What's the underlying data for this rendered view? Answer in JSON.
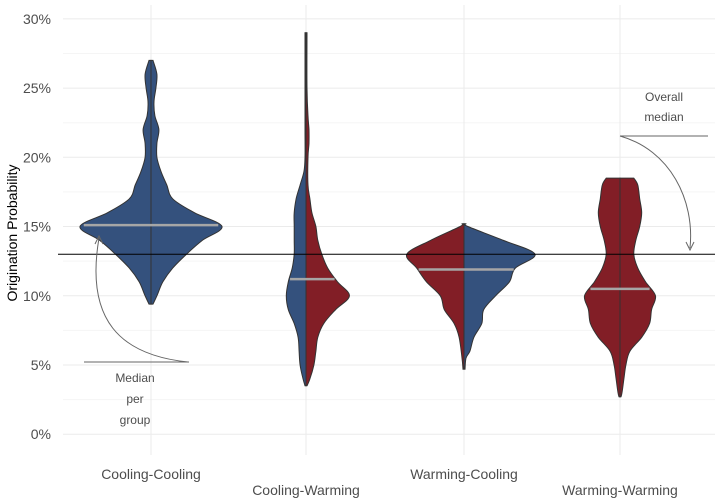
{
  "chart_data": {
    "type": "violin",
    "title": "",
    "xlabel": "",
    "ylabel": "Origination Probability",
    "ylim": [
      -0.015,
      0.31
    ],
    "yticks": [
      0,
      0.05,
      0.1,
      0.15,
      0.2,
      0.25,
      0.3
    ],
    "ytick_labels": [
      "0%",
      "5%",
      "10%",
      "15%",
      "20%",
      "25%",
      "30%"
    ],
    "grid": true,
    "overall_median": 0.13,
    "colors": {
      "cooling": "#34517d",
      "warming": "#821e26",
      "median_line": "#a6a6a6",
      "outline": "#333333"
    },
    "groups": [
      {
        "category": "Cooling-Cooling",
        "label_row": 1,
        "left": "cooling",
        "right": "cooling",
        "median": 0.151,
        "left_profile": [
          [
            0.094,
            2
          ],
          [
            0.1,
            6
          ],
          [
            0.11,
            12
          ],
          [
            0.12,
            22
          ],
          [
            0.13,
            36
          ],
          [
            0.14,
            52
          ],
          [
            0.15,
            72
          ],
          [
            0.16,
            44
          ],
          [
            0.17,
            22
          ],
          [
            0.18,
            16
          ],
          [
            0.19,
            10
          ],
          [
            0.2,
            6
          ],
          [
            0.21,
            6
          ],
          [
            0.22,
            8
          ],
          [
            0.23,
            4
          ],
          [
            0.24,
            3
          ],
          [
            0.25,
            5
          ],
          [
            0.26,
            6
          ],
          [
            0.27,
            2
          ]
        ],
        "right_profile": [
          [
            0.094,
            2
          ],
          [
            0.1,
            6
          ],
          [
            0.11,
            12
          ],
          [
            0.12,
            22
          ],
          [
            0.13,
            36
          ],
          [
            0.14,
            52
          ],
          [
            0.15,
            72
          ],
          [
            0.16,
            44
          ],
          [
            0.17,
            22
          ],
          [
            0.18,
            16
          ],
          [
            0.19,
            10
          ],
          [
            0.2,
            6
          ],
          [
            0.21,
            6
          ],
          [
            0.22,
            8
          ],
          [
            0.23,
            4
          ],
          [
            0.24,
            3
          ],
          [
            0.25,
            5
          ],
          [
            0.26,
            6
          ],
          [
            0.27,
            2
          ]
        ]
      },
      {
        "category": "Cooling-Warming",
        "label_row": 2,
        "left": "cooling",
        "right": "warming",
        "median": 0.112,
        "left_profile": [
          [
            0.035,
            1
          ],
          [
            0.04,
            3
          ],
          [
            0.05,
            6
          ],
          [
            0.06,
            7
          ],
          [
            0.07,
            8
          ],
          [
            0.08,
            12
          ],
          [
            0.09,
            18
          ],
          [
            0.1,
            20
          ],
          [
            0.11,
            18
          ],
          [
            0.12,
            14
          ],
          [
            0.13,
            12
          ],
          [
            0.14,
            12
          ],
          [
            0.15,
            12
          ],
          [
            0.16,
            12
          ],
          [
            0.17,
            10
          ],
          [
            0.18,
            6
          ],
          [
            0.19,
            2
          ],
          [
            0.2,
            1
          ],
          [
            0.22,
            1
          ],
          [
            0.25,
            1
          ],
          [
            0.29,
            1
          ]
        ],
        "right_profile": [
          [
            0.035,
            1
          ],
          [
            0.04,
            4
          ],
          [
            0.05,
            8
          ],
          [
            0.06,
            10
          ],
          [
            0.07,
            12
          ],
          [
            0.08,
            18
          ],
          [
            0.09,
            30
          ],
          [
            0.1,
            44
          ],
          [
            0.11,
            32
          ],
          [
            0.12,
            22
          ],
          [
            0.13,
            16
          ],
          [
            0.14,
            12
          ],
          [
            0.15,
            10
          ],
          [
            0.16,
            6
          ],
          [
            0.17,
            4
          ],
          [
            0.18,
            2
          ],
          [
            0.2,
            2
          ],
          [
            0.21,
            3
          ],
          [
            0.22,
            3
          ],
          [
            0.23,
            2
          ],
          [
            0.25,
            1
          ],
          [
            0.29,
            1
          ]
        ]
      },
      {
        "category": "Warming-Cooling",
        "label_row": 1,
        "left": "warming",
        "right": "cooling",
        "median": 0.119,
        "left_profile": [
          [
            0.047,
            1
          ],
          [
            0.055,
            2
          ],
          [
            0.07,
            5
          ],
          [
            0.08,
            10
          ],
          [
            0.09,
            20
          ],
          [
            0.1,
            24
          ],
          [
            0.11,
            38
          ],
          [
            0.12,
            48
          ],
          [
            0.13,
            58
          ],
          [
            0.14,
            34
          ],
          [
            0.15,
            4
          ],
          [
            0.152,
            2
          ]
        ],
        "right_profile": [
          [
            0.047,
            1
          ],
          [
            0.055,
            2
          ],
          [
            0.06,
            6
          ],
          [
            0.07,
            10
          ],
          [
            0.08,
            18
          ],
          [
            0.09,
            20
          ],
          [
            0.1,
            32
          ],
          [
            0.11,
            46
          ],
          [
            0.12,
            52
          ],
          [
            0.13,
            72
          ],
          [
            0.14,
            40
          ],
          [
            0.15,
            4
          ],
          [
            0.152,
            2
          ]
        ]
      },
      {
        "category": "Warming-Warming",
        "label_row": 2,
        "left": "warming",
        "right": "warming",
        "median": 0.105,
        "left_profile": [
          [
            0.027,
            1
          ],
          [
            0.03,
            2
          ],
          [
            0.04,
            4
          ],
          [
            0.05,
            6
          ],
          [
            0.06,
            10
          ],
          [
            0.07,
            22
          ],
          [
            0.08,
            30
          ],
          [
            0.09,
            32
          ],
          [
            0.1,
            36
          ],
          [
            0.11,
            26
          ],
          [
            0.12,
            18
          ],
          [
            0.13,
            14
          ],
          [
            0.14,
            16
          ],
          [
            0.15,
            20
          ],
          [
            0.16,
            22
          ],
          [
            0.17,
            20
          ],
          [
            0.18,
            18
          ],
          [
            0.185,
            14
          ]
        ],
        "right_profile": [
          [
            0.027,
            1
          ],
          [
            0.03,
            2
          ],
          [
            0.04,
            4
          ],
          [
            0.05,
            6
          ],
          [
            0.06,
            10
          ],
          [
            0.07,
            22
          ],
          [
            0.08,
            30
          ],
          [
            0.09,
            32
          ],
          [
            0.1,
            36
          ],
          [
            0.11,
            26
          ],
          [
            0.12,
            18
          ],
          [
            0.13,
            14
          ],
          [
            0.14,
            16
          ],
          [
            0.15,
            20
          ],
          [
            0.16,
            22
          ],
          [
            0.17,
            20
          ],
          [
            0.18,
            18
          ],
          [
            0.185,
            14
          ]
        ]
      }
    ],
    "annotations": [
      {
        "id": "median-per-group",
        "lines": [
          "Median",
          "per",
          "group"
        ],
        "points_to": {
          "category": "Cooling-Cooling",
          "y": 0.151
        }
      },
      {
        "id": "overall-median",
        "lines": [
          "Overall",
          "median"
        ],
        "points_to": {
          "category": "Warming-Warming",
          "y": 0.13
        }
      }
    ]
  }
}
